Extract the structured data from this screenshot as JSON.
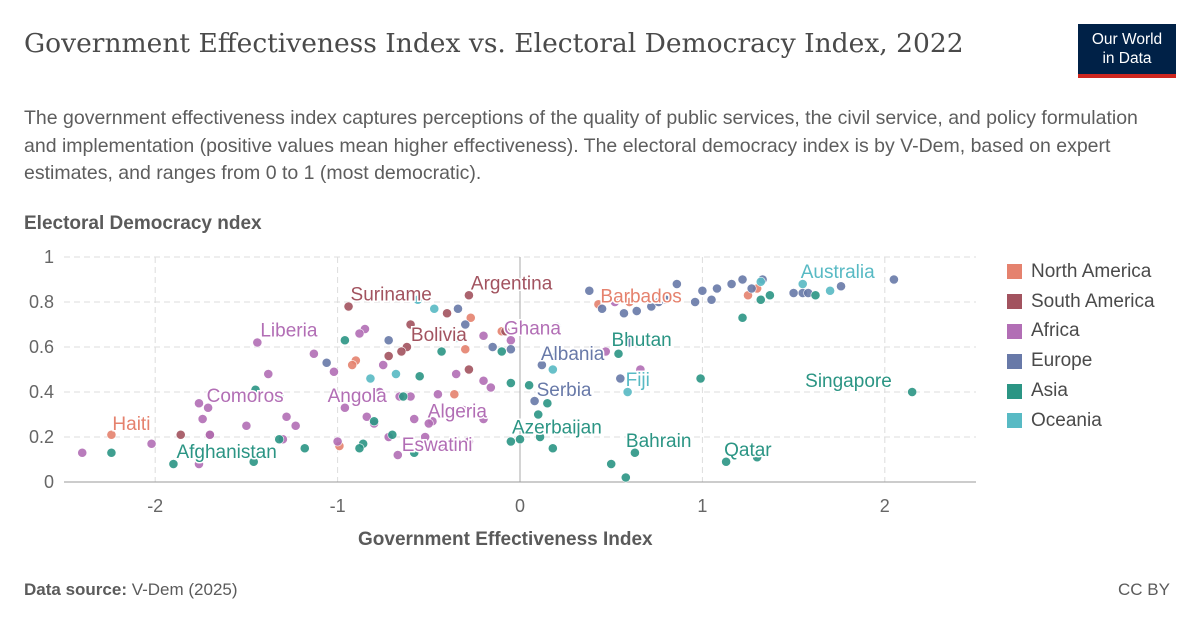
{
  "header": {
    "title": "Government Effectiveness Index vs. Electoral Democracy Index, 2022",
    "subtitle": "The government effectiveness index captures perceptions of the quality of public services, the civil service, and policy formulation and implementation (positive values mean higher effectiveness). The electoral democracy index is by V-Dem, based on expert estimates, and ranges from 0 to 1 (most democratic).",
    "logo_line1": "Our World",
    "logo_line2": "in Data"
  },
  "footer": {
    "source_label": "Data source:",
    "source_value": "V-Dem (2025)",
    "license": "CC BY"
  },
  "colors": {
    "North America": "#e5826e",
    "South America": "#a2535f",
    "Africa": "#b26eb5",
    "Europe": "#6879a8",
    "Asia": "#2b9584",
    "Oceania": "#58bac4"
  },
  "chart_data": {
    "type": "scatter",
    "xlabel": "Government Effectiveness Index",
    "ylabel": "Electoral Democracy ndex",
    "xlim": [
      -2.5,
      2.5
    ],
    "ylim": [
      0,
      1
    ],
    "xticks": [
      -2,
      -1,
      0,
      1,
      2
    ],
    "yticks": [
      0,
      0.2,
      0.4,
      0.6,
      0.8,
      1
    ],
    "grid": true,
    "legend_position": "right",
    "series": [
      {
        "name": "North America",
        "points": [
          [
            -2.24,
            0.21
          ],
          [
            0.43,
            0.79
          ],
          [
            0.6,
            0.8
          ],
          [
            1.25,
            0.83
          ],
          [
            -0.9,
            0.54
          ],
          [
            -0.36,
            0.39
          ],
          [
            -0.92,
            0.52
          ],
          [
            -0.1,
            0.67
          ],
          [
            -0.3,
            0.59
          ],
          [
            1.3,
            0.86
          ],
          [
            -0.99,
            0.16
          ],
          [
            -0.27,
            0.73
          ]
        ]
      },
      {
        "name": "South America",
        "points": [
          [
            -0.94,
            0.78
          ],
          [
            -0.28,
            0.83
          ],
          [
            -0.62,
            0.6
          ],
          [
            -0.4,
            0.75
          ],
          [
            -0.6,
            0.7
          ],
          [
            -0.65,
            0.58
          ],
          [
            -0.28,
            0.5
          ],
          [
            -0.72,
            0.56
          ],
          [
            -0.08,
            0.67
          ],
          [
            -1.86,
            0.21
          ],
          [
            -1.7,
            0.21
          ]
        ]
      },
      {
        "name": "Africa",
        "points": [
          [
            -1.44,
            0.62
          ],
          [
            -0.2,
            0.65
          ],
          [
            -0.85,
            0.68
          ],
          [
            -0.2,
            0.45
          ],
          [
            -1.76,
            0.35
          ],
          [
            -1.74,
            0.28
          ],
          [
            -1.71,
            0.33
          ],
          [
            -0.2,
            0.28
          ],
          [
            -0.42,
            0.17
          ],
          [
            -2.4,
            0.13
          ],
          [
            -2.02,
            0.17
          ],
          [
            -1.3,
            0.19
          ],
          [
            -1.7,
            0.21
          ],
          [
            -1.5,
            0.25
          ],
          [
            -1.23,
            0.25
          ],
          [
            -1.28,
            0.29
          ],
          [
            -1.13,
            0.57
          ],
          [
            -1.02,
            0.49
          ],
          [
            -0.96,
            0.33
          ],
          [
            -0.88,
            0.66
          ],
          [
            -0.77,
            0.4
          ],
          [
            -0.72,
            0.2
          ],
          [
            -0.67,
            0.12
          ],
          [
            -0.58,
            0.28
          ],
          [
            -0.6,
            0.38
          ],
          [
            -0.52,
            0.2
          ],
          [
            -0.48,
            0.27
          ],
          [
            -0.45,
            0.39
          ],
          [
            -0.35,
            0.48
          ],
          [
            -0.31,
            0.32
          ],
          [
            -0.28,
            0.18
          ],
          [
            -0.16,
            0.42
          ],
          [
            -0.05,
            0.63
          ],
          [
            0.47,
            0.58
          ],
          [
            0.52,
            0.8
          ],
          [
            0.66,
            0.5
          ],
          [
            -1.0,
            0.18
          ],
          [
            -0.75,
            0.52
          ],
          [
            -0.5,
            0.26
          ],
          [
            -0.84,
            0.29
          ],
          [
            -0.8,
            0.26
          ],
          [
            -0.66,
            0.38
          ],
          [
            -1.76,
            0.08
          ],
          [
            -1.38,
            0.48
          ]
        ]
      },
      {
        "name": "Europe",
        "points": [
          [
            0.38,
            0.85
          ],
          [
            0.45,
            0.77
          ],
          [
            0.57,
            0.75
          ],
          [
            0.64,
            0.76
          ],
          [
            0.72,
            0.78
          ],
          [
            0.8,
            0.81
          ],
          [
            0.86,
            0.88
          ],
          [
            0.96,
            0.8
          ],
          [
            1.0,
            0.85
          ],
          [
            1.05,
            0.81
          ],
          [
            1.08,
            0.86
          ],
          [
            1.16,
            0.88
          ],
          [
            1.22,
            0.9
          ],
          [
            1.27,
            0.86
          ],
          [
            1.33,
            0.9
          ],
          [
            1.5,
            0.84
          ],
          [
            1.55,
            0.84
          ],
          [
            1.58,
            0.84
          ],
          [
            1.76,
            0.87
          ],
          [
            2.05,
            0.9
          ],
          [
            0.55,
            0.46
          ],
          [
            0.6,
            0.62
          ],
          [
            0.08,
            0.36
          ],
          [
            -0.3,
            0.7
          ],
          [
            -0.05,
            0.59
          ],
          [
            -0.15,
            0.6
          ],
          [
            -0.34,
            0.77
          ],
          [
            0.12,
            0.52
          ],
          [
            0.76,
            0.8
          ],
          [
            -1.06,
            0.53
          ],
          [
            -0.72,
            0.63
          ],
          [
            0.2,
            0.69
          ]
        ]
      },
      {
        "name": "Asia",
        "points": [
          [
            -1.9,
            0.08
          ],
          [
            -2.24,
            0.13
          ],
          [
            -1.45,
            0.41
          ],
          [
            -1.32,
            0.38
          ],
          [
            -1.18,
            0.15
          ],
          [
            -0.96,
            0.63
          ],
          [
            -0.86,
            0.17
          ],
          [
            -0.8,
            0.27
          ],
          [
            -0.7,
            0.21
          ],
          [
            -0.64,
            0.38
          ],
          [
            -0.58,
            0.13
          ],
          [
            -0.43,
            0.58
          ],
          [
            -0.1,
            0.58
          ],
          [
            -0.05,
            0.44
          ],
          [
            0.0,
            0.19
          ],
          [
            0.1,
            0.3
          ],
          [
            0.15,
            0.35
          ],
          [
            0.18,
            0.15
          ],
          [
            -0.05,
            0.18
          ],
          [
            0.5,
            0.08
          ],
          [
            0.58,
            0.02
          ],
          [
            0.63,
            0.13
          ],
          [
            0.54,
            0.57
          ],
          [
            0.99,
            0.46
          ],
          [
            1.13,
            0.09
          ],
          [
            1.22,
            0.73
          ],
          [
            1.32,
            0.81
          ],
          [
            1.37,
            0.83
          ],
          [
            1.62,
            0.83
          ],
          [
            2.15,
            0.4
          ],
          [
            0.11,
            0.2
          ],
          [
            -1.46,
            0.09
          ],
          [
            -0.55,
            0.47
          ],
          [
            0.2,
            0.56
          ],
          [
            1.3,
            0.11
          ],
          [
            0.05,
            0.43
          ],
          [
            -0.88,
            0.15
          ],
          [
            -1.32,
            0.19
          ]
        ]
      },
      {
        "name": "Oceania",
        "points": [
          [
            0.59,
            0.4
          ],
          [
            1.55,
            0.88
          ],
          [
            1.32,
            0.89
          ],
          [
            -0.82,
            0.46
          ],
          [
            -0.68,
            0.48
          ],
          [
            -0.47,
            0.77
          ],
          [
            -0.56,
            0.81
          ],
          [
            -0.35,
            0.64
          ],
          [
            1.7,
            0.85
          ],
          [
            0.18,
            0.5
          ]
        ]
      }
    ],
    "annotations": [
      {
        "text": "Haiti",
        "region": "North America",
        "x": -2.24,
        "y": 0.21
      },
      {
        "text": "Barbados",
        "region": "North America",
        "x": 0.43,
        "y": 0.79
      },
      {
        "text": "Suriname",
        "region": "South America",
        "x": -0.94,
        "y": 0.78
      },
      {
        "text": "Argentina",
        "region": "South America",
        "x": -0.28,
        "y": 0.83
      },
      {
        "text": "Bolivia",
        "region": "South America",
        "x": -0.62,
        "y": 0.6
      },
      {
        "text": "Liberia",
        "region": "Africa",
        "x": -1.44,
        "y": 0.62
      },
      {
        "text": "Ghana",
        "region": "Africa",
        "x": -0.05,
        "y": 0.63
      },
      {
        "text": "Angola",
        "region": "Africa",
        "x": -1.0,
        "y": 0.33
      },
      {
        "text": "Comoros",
        "region": "Africa",
        "x": -1.74,
        "y": 0.33
      },
      {
        "text": "Algeria",
        "region": "Africa",
        "x": -0.5,
        "y": 0.26
      },
      {
        "text": "Eswatini",
        "region": "Africa",
        "x": -0.67,
        "y": 0.12
      },
      {
        "text": "Albania",
        "region": "Europe",
        "x": 0.12,
        "y": 0.52
      },
      {
        "text": "Serbia",
        "region": "Europe",
        "x": 0.08,
        "y": 0.36
      },
      {
        "text": "Bhutan",
        "region": "Asia",
        "x": 0.54,
        "y": 0.57
      },
      {
        "text": "Azerbaijan",
        "region": "Asia",
        "x": 0.0,
        "y": 0.19
      },
      {
        "text": "Bahrain",
        "region": "Asia",
        "x": 0.63,
        "y": 0.13
      },
      {
        "text": "Qatar",
        "region": "Asia",
        "x": 1.13,
        "y": 0.09
      },
      {
        "text": "Singapore",
        "region": "Asia",
        "x": 2.15,
        "y": 0.4
      },
      {
        "text": "Afghanistan",
        "region": "Asia",
        "x": -1.9,
        "y": 0.08
      },
      {
        "text": "Fiji",
        "region": "Oceania",
        "x": 0.59,
        "y": 0.4
      },
      {
        "text": "Australia",
        "region": "Oceania",
        "x": 1.55,
        "y": 0.88
      }
    ]
  }
}
